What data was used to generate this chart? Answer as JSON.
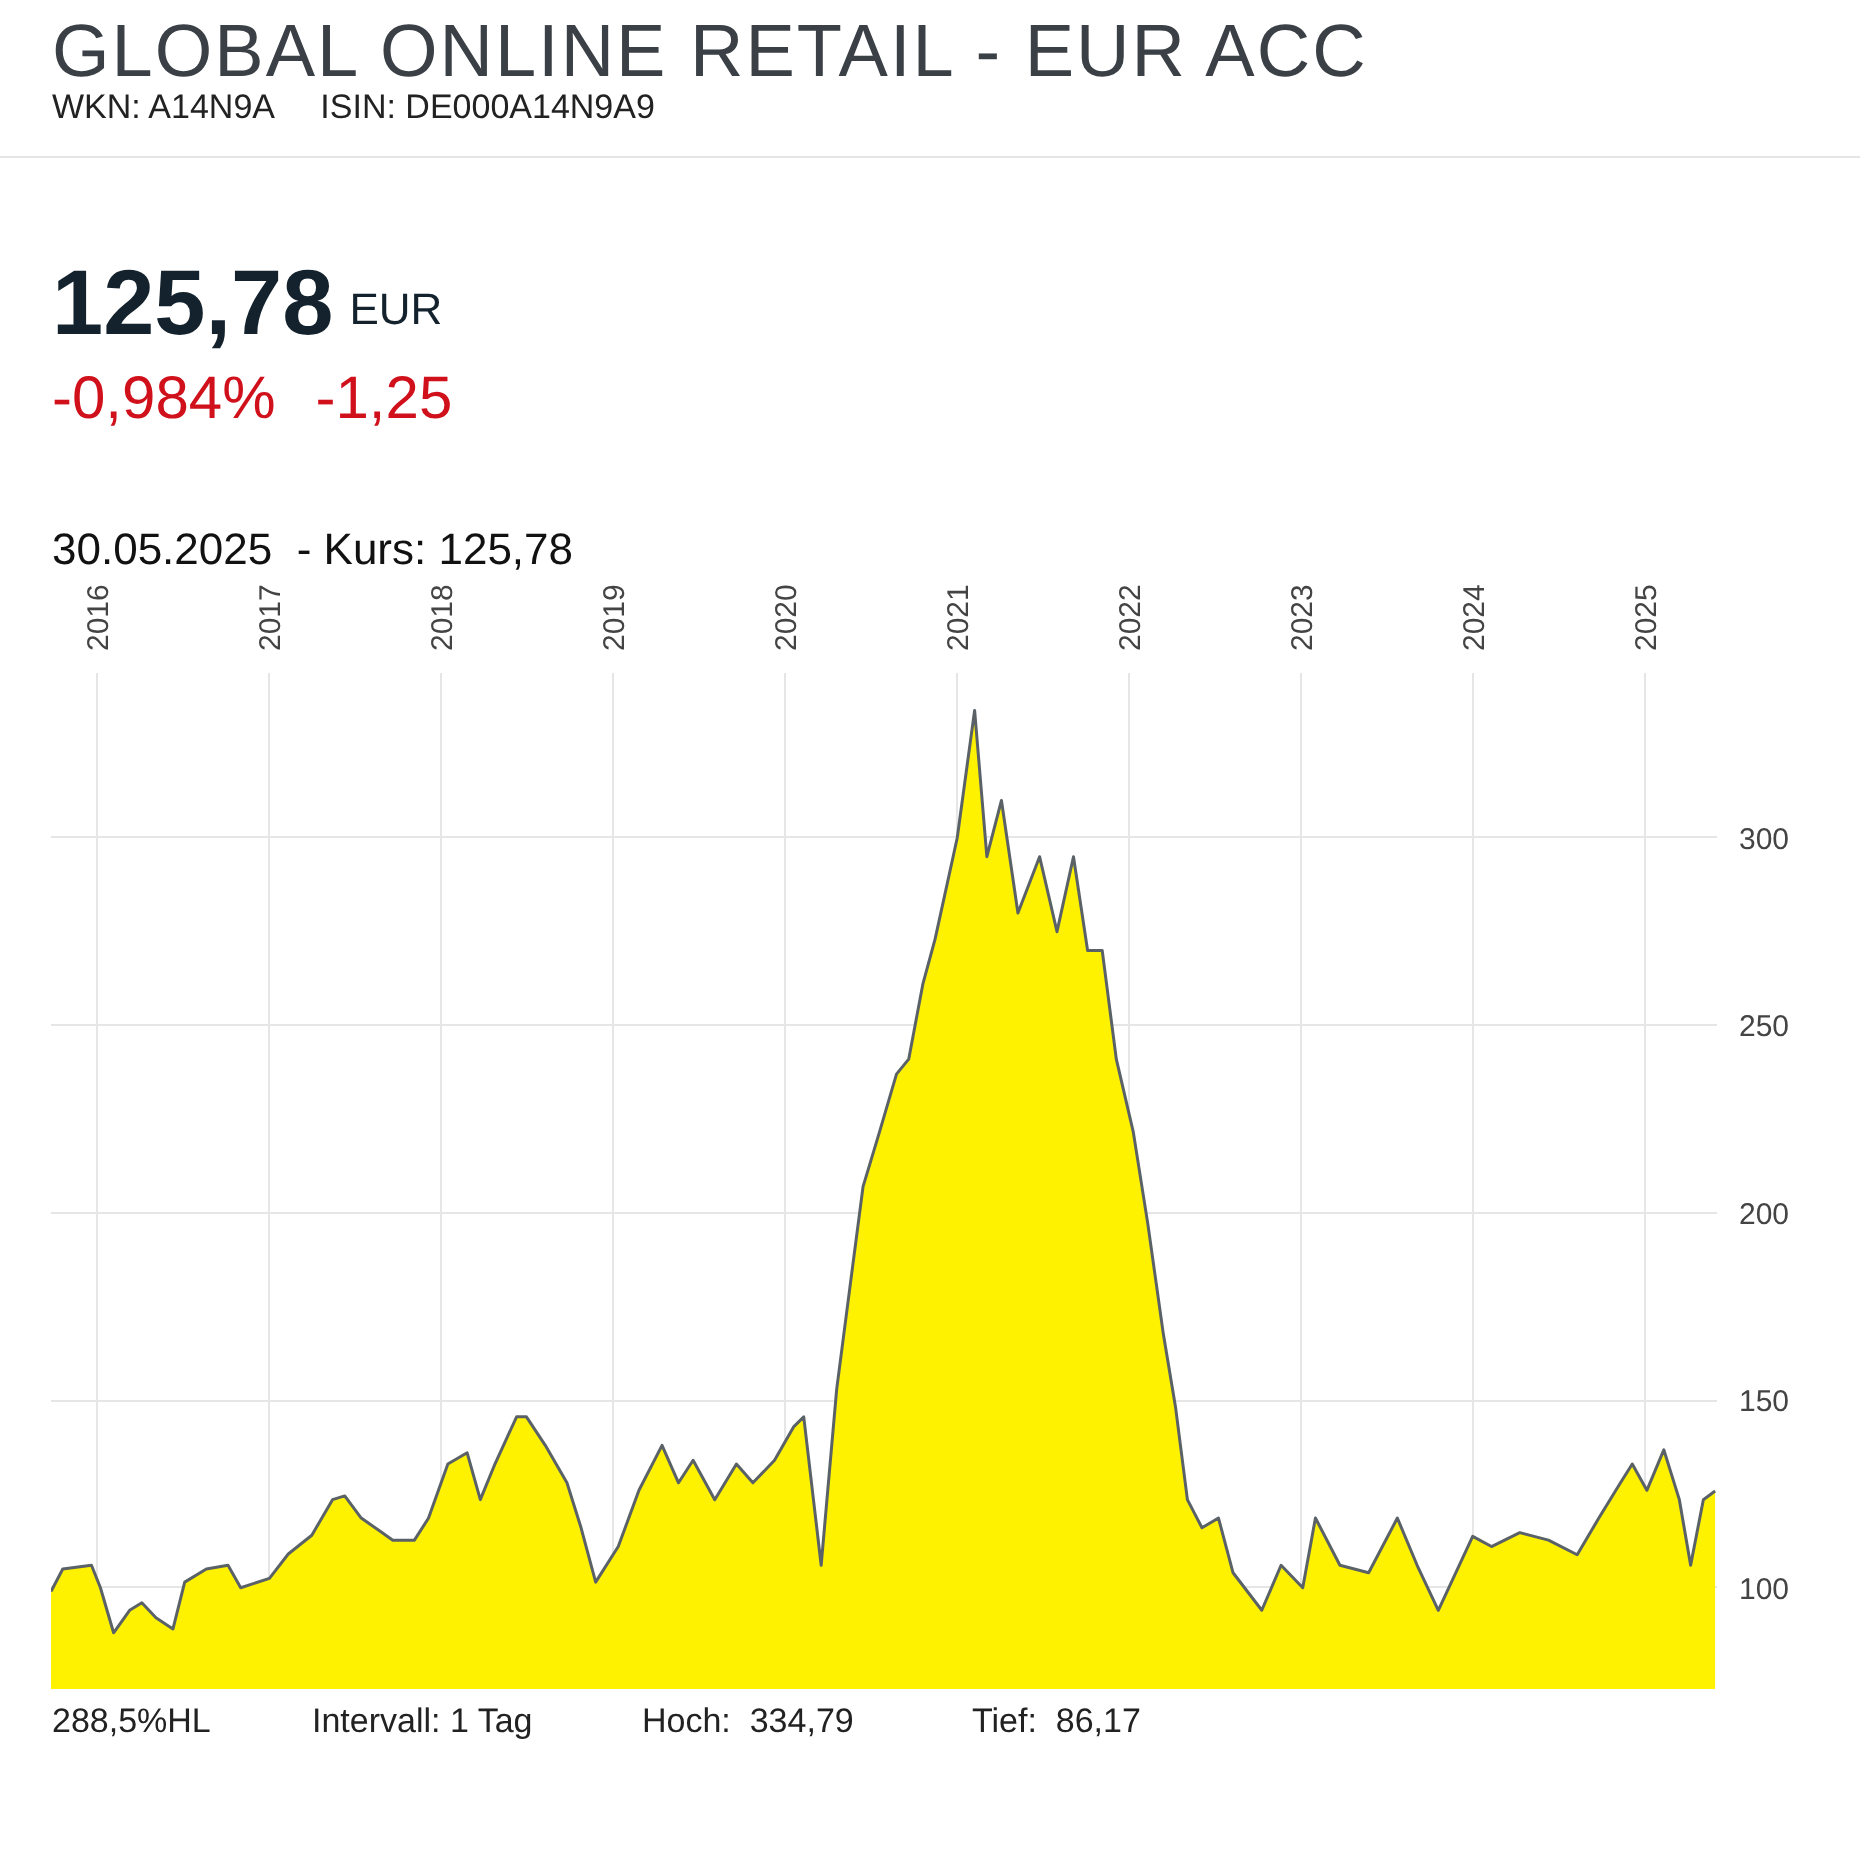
{
  "chart_data": {
    "type": "area",
    "title": "GLOBAL ONLINE RETAIL - EUR ACC",
    "subtitle": "WKN: A14N9A     ISIN: DE000A14N9A9",
    "annotations": [
      "125,78",
      "EUR",
      "-0,984%",
      "-1,25",
      "30.05.2025  - Kurs: 125,78",
      "288,5%HL",
      "Intervall: 1 Tag",
      "Hoch:  334,79",
      "Tief:  86,17"
    ],
    "x": [
      "2015-09-25",
      "2015-10-20",
      "2015-12-20",
      "2016-01-08",
      "2016-02-05",
      "2016-03-10",
      "2016-04-05",
      "2016-05-05",
      "2016-06-10",
      "2016-07-05",
      "2016-08-20",
      "2016-10-05",
      "2016-11-01",
      "2017-01-01",
      "2017-02-10",
      "2017-04-01",
      "2017-05-15",
      "2017-06-10",
      "2017-07-15",
      "2017-08-25",
      "2017-09-20",
      "2017-11-05",
      "2017-12-05",
      "2018-01-15",
      "2018-02-25",
      "2018-03-25",
      "2018-04-25",
      "2018-06-10",
      "2018-07-01",
      "2018-08-10",
      "2018-09-25",
      "2018-10-25",
      "2018-11-25",
      "2019-01-12",
      "2019-02-25",
      "2019-04-15",
      "2019-05-20",
      "2019-06-20",
      "2019-08-05",
      "2019-09-20",
      "2019-10-25",
      "2019-12-10",
      "2020-01-20",
      "2020-02-10",
      "2020-03-18",
      "2020-04-20",
      "2020-05-20",
      "2020-06-15",
      "2020-07-20",
      "2020-08-25",
      "2020-09-20",
      "2020-10-20",
      "2020-11-15",
      "2021-01-01",
      "2021-02-07",
      "2021-03-05",
      "2021-04-05",
      "2021-05-10",
      "2021-06-25",
      "2021-08-01",
      "2021-09-05",
      "2021-10-05",
      "2021-11-05",
      "2021-12-05",
      "2022-01-10",
      "2022-02-10",
      "2022-03-15",
      "2022-04-10",
      "2022-05-05",
      "2022-06-05",
      "2022-07-10",
      "2022-08-10",
      "2022-10-10",
      "2022-11-20",
      "2023-01-05",
      "2023-02-01",
      "2023-03-25",
      "2023-05-25",
      "2023-07-25",
      "2023-09-05",
      "2023-10-20",
      "2024-01-01",
      "2024-02-10",
      "2024-04-10",
      "2024-06-10",
      "2024-08-10",
      "2024-09-25",
      "2024-11-10",
      "2024-12-05",
      "2025-01-05",
      "2025-02-10",
      "2025-03-15",
      "2025-04-08",
      "2025-05-05",
      "2025-05-30"
    ],
    "series": [
      {
        "color": "#fff200",
        "values": [
          99,
          105,
          106,
          100,
          88,
          94,
          96,
          92,
          89,
          101.5,
          105,
          106,
          100,
          102.5,
          109,
          114,
          123.5,
          124.5,
          118.6,
          115,
          112.7,
          112.7,
          118.6,
          133,
          136,
          123.5,
          133,
          145.6,
          145.6,
          138,
          128,
          116,
          101.5,
          111,
          126,
          138,
          128,
          134,
          123.5,
          133,
          128,
          134,
          143,
          145.6,
          106,
          153,
          182,
          207,
          221.6,
          237,
          241,
          261,
          273,
          300,
          334,
          295,
          310,
          280,
          295,
          275,
          295,
          270,
          270,
          241,
          221.6,
          197,
          167.6,
          148,
          123.5,
          116,
          118.6,
          104,
          94,
          106,
          100,
          118.6,
          106,
          104,
          118.6,
          106,
          94,
          113.7,
          111,
          114.7,
          112.7,
          108.8,
          118.6,
          128,
          133,
          126,
          136.8,
          123.5,
          106,
          123.5,
          125.8
        ]
      }
    ],
    "xlim": [
      "2015-09-25",
      "2025-06-03"
    ],
    "ylim": [
      73,
      344
    ],
    "xticks": [
      "2016",
      "2017",
      "2018",
      "2019",
      "2020",
      "2021",
      "2022",
      "2023",
      "2024",
      "2025"
    ],
    "yticks": [
      100,
      150,
      200,
      250,
      300
    ],
    "grid": true
  }
}
